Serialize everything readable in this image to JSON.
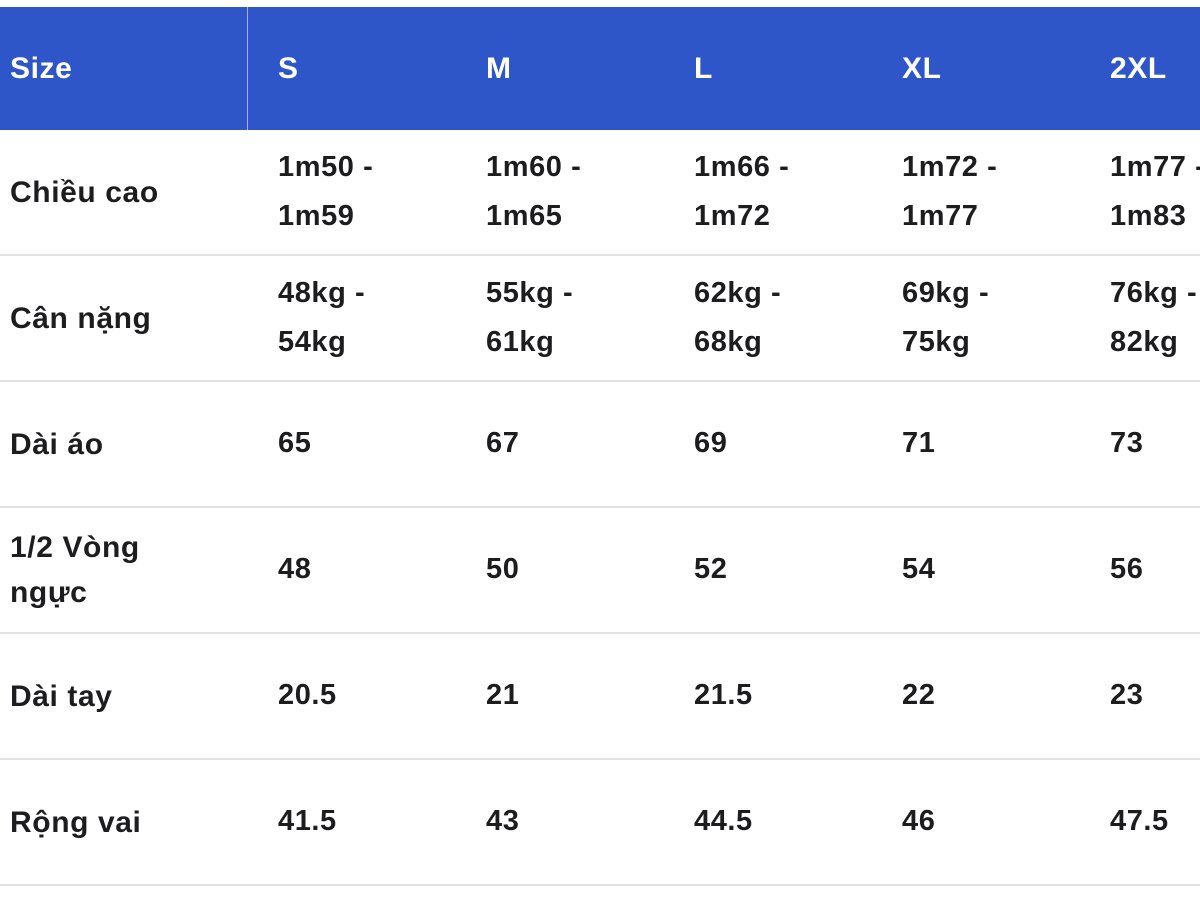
{
  "table": {
    "header": [
      "Size",
      "S",
      "M",
      "L",
      "XL",
      "2XL"
    ],
    "rows": [
      {
        "label": "Chiều cao",
        "values": [
          "1m50 -\n1m59",
          "1m60 -\n1m65",
          "1m66 -\n1m72",
          "1m72 -\n1m77",
          "1m77 -\n1m83"
        ]
      },
      {
        "label": "Cân nặng",
        "values": [
          "48kg -\n54kg",
          "55kg -\n61kg",
          "62kg -\n68kg",
          "69kg -\n75kg",
          "76kg -\n82kg"
        ]
      },
      {
        "label": "Dài áo",
        "values": [
          "65",
          "67",
          "69",
          "71",
          "73"
        ]
      },
      {
        "label": "1/2 Vòng\nngực",
        "values": [
          "48",
          "50",
          "52",
          "54",
          "56"
        ]
      },
      {
        "label": "Dài tay",
        "values": [
          "20.5",
          "21",
          "21.5",
          "22",
          "23"
        ]
      },
      {
        "label": "Rộng vai",
        "values": [
          "41.5",
          "43",
          "44.5",
          "46",
          "47.5"
        ]
      }
    ]
  },
  "colors": {
    "header_bg": "#2e56c9",
    "header_text": "#ffffff",
    "body_text": "#1d1d1f",
    "divider": "#e3e3e3"
  }
}
